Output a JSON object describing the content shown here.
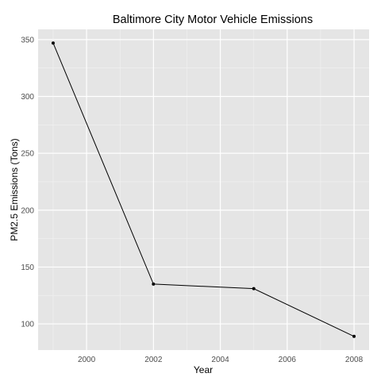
{
  "chart_data": {
    "type": "line",
    "title": "Baltimore City Motor Vehicle Emissions",
    "xlabel": "Year",
    "ylabel": "PM2.5 Emissions (Tons)",
    "x": [
      1999,
      2002,
      2005,
      2008
    ],
    "series": [
      {
        "values": [
          347,
          135,
          131,
          89
        ]
      }
    ],
    "xlim": [
      1998.55,
      2008.45
    ],
    "ylim": [
      77,
      359
    ],
    "x_ticks": [
      2000,
      2002,
      2004,
      2006,
      2008
    ],
    "y_ticks": [
      100,
      150,
      200,
      250,
      300,
      350
    ],
    "grid": true,
    "legend": "none",
    "colors": {
      "panel": "#e5e5e5",
      "grid_major": "#ffffff",
      "grid_minor": "#f2f2f2",
      "line": "#000000",
      "tick_label": "#4d4d4d"
    }
  }
}
